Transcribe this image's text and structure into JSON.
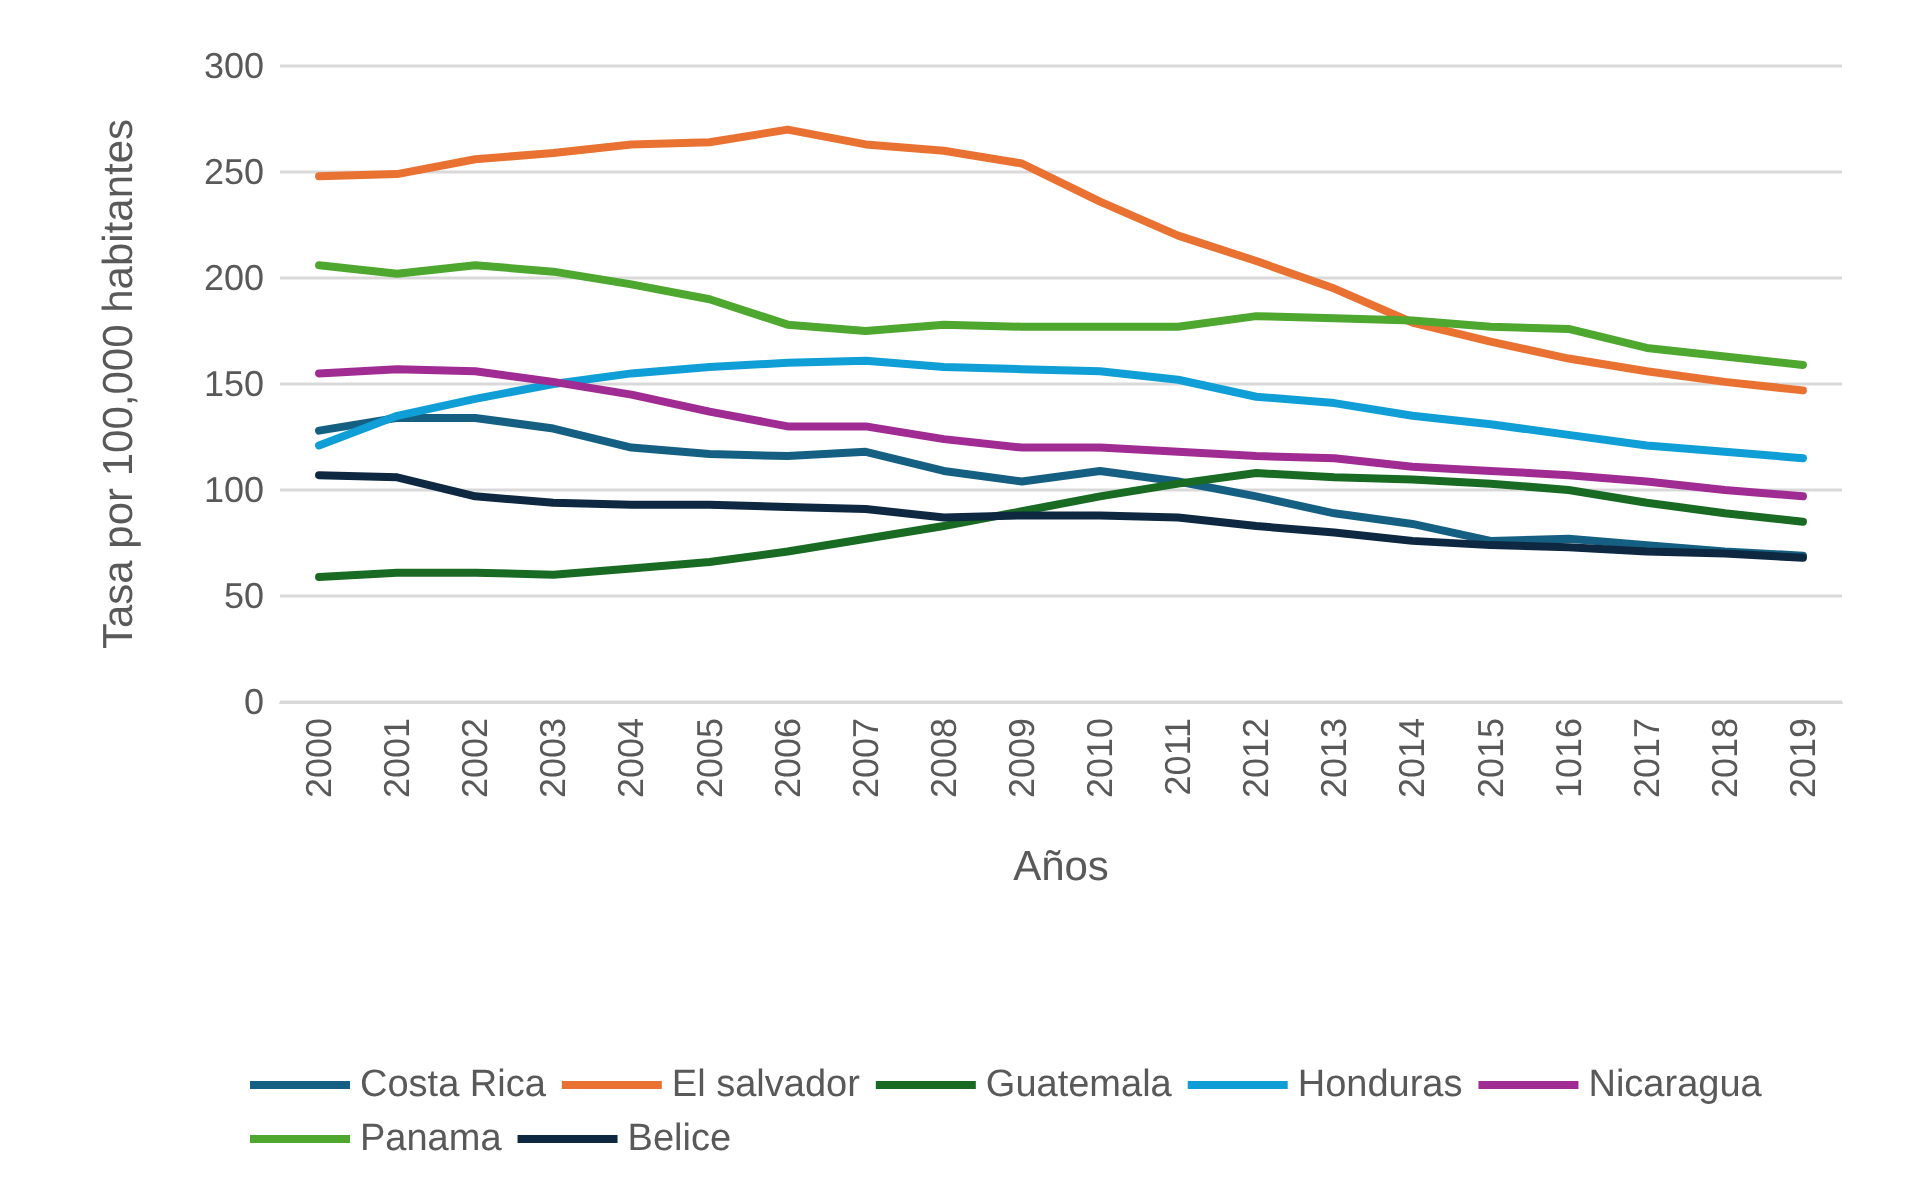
{
  "chart_data": {
    "type": "line",
    "xlabel": "Años",
    "ylabel": "Tasa por 100,000 habitantes",
    "categories": [
      "2000",
      "2001",
      "2002",
      "2003",
      "2004",
      "2005",
      "2006",
      "2007",
      "2008",
      "2009",
      "2010",
      "2011",
      "2012",
      "2013",
      "2014",
      "2015",
      "1016",
      "2017",
      "2018",
      "2019"
    ],
    "ylim": [
      0,
      300
    ],
    "yticks": [
      0,
      50,
      100,
      150,
      200,
      250,
      300
    ],
    "grid": "y",
    "legend": "bottom",
    "marker": "none",
    "line_style": "solid",
    "series": [
      {
        "name": "Costa Rica",
        "color": "#156082",
        "values": [
          128,
          134,
          134,
          129,
          120,
          117,
          116,
          118,
          109,
          104,
          109,
          104,
          97,
          89,
          84,
          76,
          77,
          74,
          71,
          69
        ]
      },
      {
        "name": "El salvador",
        "color": "#e97132",
        "values": [
          248,
          249,
          256,
          259,
          263,
          264,
          270,
          263,
          260,
          254,
          236,
          220,
          208,
          195,
          179,
          170,
          162,
          156,
          151,
          147
        ]
      },
      {
        "name": "Guatemala",
        "color": "#196b24",
        "values": [
          59,
          61,
          61,
          60,
          63,
          66,
          71,
          77,
          83,
          90,
          97,
          103,
          108,
          106,
          105,
          103,
          100,
          94,
          89,
          85
        ]
      },
      {
        "name": "Honduras",
        "color": "#0f9ed5",
        "values": [
          121,
          135,
          143,
          150,
          155,
          158,
          160,
          161,
          158,
          157,
          156,
          152,
          144,
          141,
          135,
          131,
          126,
          121,
          118,
          115
        ]
      },
      {
        "name": "Nicaragua",
        "color": "#a02b93",
        "values": [
          155,
          157,
          156,
          151,
          145,
          137,
          130,
          130,
          124,
          120,
          120,
          118,
          116,
          115,
          111,
          109,
          107,
          104,
          100,
          97
        ]
      },
      {
        "name": "Panama",
        "color": "#4ea72e",
        "values": [
          206,
          202,
          206,
          203,
          197,
          190,
          178,
          175,
          178,
          177,
          177,
          177,
          182,
          181,
          180,
          177,
          176,
          167,
          163,
          159
        ]
      },
      {
        "name": "Belice",
        "color": "#0e2841",
        "values": [
          107,
          106,
          97,
          94,
          93,
          93,
          92,
          91,
          87,
          88,
          88,
          87,
          83,
          80,
          76,
          74,
          73,
          71,
          70,
          68
        ]
      }
    ]
  }
}
